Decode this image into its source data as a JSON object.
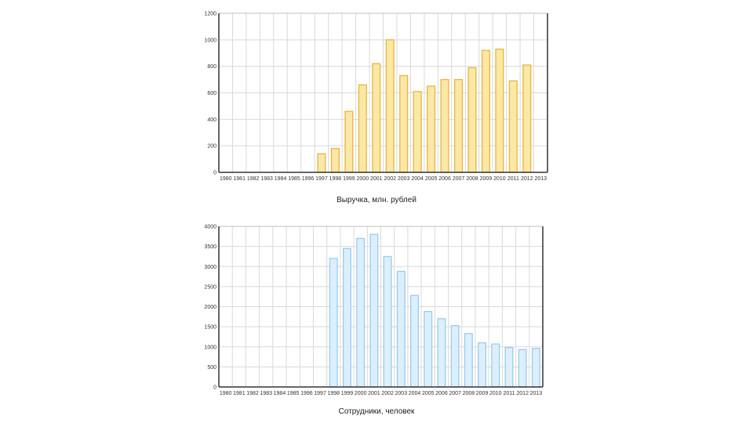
{
  "chart_data": [
    {
      "type": "bar",
      "title": "Выручка, млн. рублей",
      "categories": [
        "1980",
        "1981",
        "1982",
        "1983",
        "1984",
        "1985",
        "1996",
        "1997",
        "1998",
        "1999",
        "2000",
        "2001",
        "2002",
        "2003",
        "2004",
        "2005",
        "2006",
        "2007",
        "2008",
        "2009",
        "2010",
        "2011",
        "2012",
        "2013"
      ],
      "values": [
        null,
        null,
        null,
        null,
        null,
        null,
        null,
        140,
        180,
        460,
        660,
        820,
        1000,
        730,
        610,
        650,
        700,
        700,
        790,
        920,
        930,
        690,
        810,
        null
      ],
      "ylim": [
        0,
        1200
      ],
      "yticks": [
        0,
        200,
        400,
        600,
        800,
        1000,
        1200
      ],
      "grid": true,
      "colors": {
        "bar_fill": "#fbe7a6",
        "bar_stroke": "#e5b73b",
        "axis": "#333333",
        "grid": "#d9d9d9"
      }
    },
    {
      "type": "bar",
      "title": "Сотрудники, человек",
      "categories": [
        "1980",
        "1981",
        "1982",
        "1983",
        "1984",
        "1985",
        "1996",
        "1997",
        "1998",
        "1999",
        "2000",
        "2001",
        "2002",
        "2003",
        "2004",
        "2005",
        "2006",
        "2007",
        "2008",
        "2009",
        "2010",
        "2011",
        "2012",
        "2013"
      ],
      "values": [
        null,
        null,
        null,
        null,
        null,
        null,
        null,
        null,
        3200,
        3450,
        3700,
        3800,
        3250,
        2880,
        2280,
        1880,
        1700,
        1530,
        1330,
        1100,
        1070,
        980,
        930,
        960
      ],
      "ylim": [
        0,
        4000
      ],
      "yticks": [
        0,
        500,
        1000,
        1500,
        2000,
        2500,
        3000,
        3500,
        4000
      ],
      "grid": true,
      "colors": {
        "bar_fill": "#dcefff",
        "bar_stroke": "#9ccbe9",
        "axis": "#333333",
        "grid": "#d9d9d9"
      }
    }
  ]
}
